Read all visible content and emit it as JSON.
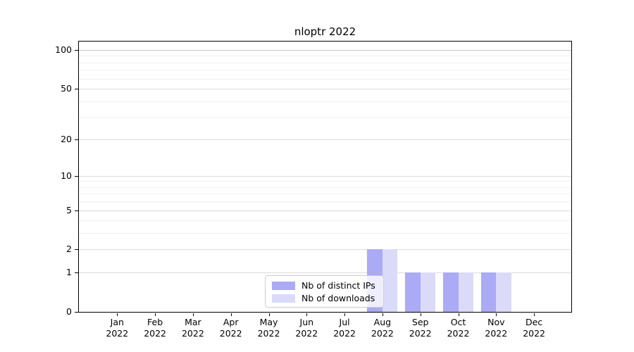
{
  "title": "nloptr 2022",
  "legend": {
    "entries": [
      {
        "label": "Nb of distinct IPs",
        "color": "#abaaf4"
      },
      {
        "label": "Nb of downloads",
        "color": "#dbdaf8"
      }
    ]
  },
  "chart_data": {
    "type": "bar",
    "title": "nloptr 2022",
    "categories": [
      "Jan 2022",
      "Feb 2022",
      "Mar 2022",
      "Apr 2022",
      "May 2022",
      "Jun 2022",
      "Jul 2022",
      "Aug 2022",
      "Sep 2022",
      "Oct 2022",
      "Nov 2022",
      "Dec 2022"
    ],
    "series": [
      {
        "name": "Nb of distinct IPs",
        "color": "#abaaf4",
        "values": [
          0,
          0,
          0,
          0,
          0,
          0,
          0,
          2,
          1,
          1,
          1,
          0
        ]
      },
      {
        "name": "Nb of downloads",
        "color": "#dbdaf8",
        "values": [
          0,
          0,
          0,
          0,
          0,
          0,
          0,
          2,
          1,
          1,
          1,
          0
        ]
      }
    ],
    "xlabel": "",
    "ylabel": "",
    "y_scale": "log1p",
    "y_ticks": [
      0,
      1,
      2,
      5,
      10,
      20,
      50,
      100
    ],
    "y_minor_gridlines": [
      3,
      4,
      6,
      7,
      8,
      9,
      30,
      40,
      60,
      70,
      80,
      90
    ],
    "ylim": [
      0,
      117
    ],
    "grid": true,
    "legend_position": "inside lower center",
    "colors": {
      "major_gridline": "#dcdcdc",
      "minor_gridline": "#f0f0f0",
      "top_gridline": "#c9c9c9",
      "axis": "#000000",
      "legend_border": "#cccccc"
    }
  }
}
